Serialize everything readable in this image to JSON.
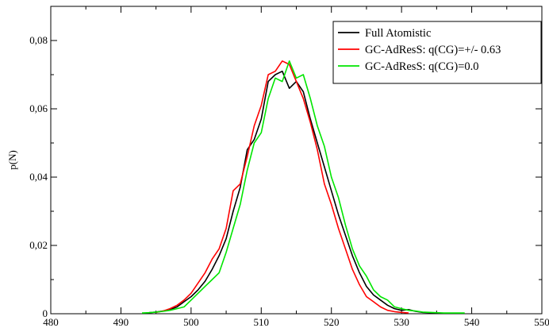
{
  "chart_data": {
    "type": "line",
    "title": "",
    "xlabel": "",
    "ylabel": "p(N)",
    "xlim": [
      480,
      550
    ],
    "ylim": [
      0,
      0.09
    ],
    "xticks": [
      480,
      490,
      500,
      510,
      520,
      530,
      540,
      550
    ],
    "xtick_labels": [
      "480",
      "490",
      "500",
      "510",
      "520",
      "530",
      "540",
      "550"
    ],
    "yticks": [
      0,
      0.02,
      0.04,
      0.06,
      0.08
    ],
    "ytick_labels": [
      "0",
      "0,02",
      "0,04",
      "0,06",
      "0,08"
    ],
    "grid": false,
    "legend_position": "top-right",
    "series": [
      {
        "name": "Full Atomistic",
        "color": "#000000",
        "x": [
          494,
          495,
          496,
          497,
          498,
          499,
          500,
          501,
          502,
          503,
          504,
          505,
          506,
          507,
          508,
          509,
          510,
          511,
          512,
          513,
          514,
          515,
          516,
          517,
          518,
          519,
          520,
          521,
          522,
          523,
          524,
          525,
          526,
          527,
          528,
          529,
          530,
          531,
          532,
          533,
          534,
          535
        ],
        "y": [
          0.0003,
          0.0005,
          0.0008,
          0.0012,
          0.002,
          0.0035,
          0.005,
          0.007,
          0.0095,
          0.013,
          0.017,
          0.022,
          0.03,
          0.037,
          0.048,
          0.051,
          0.057,
          0.068,
          0.07,
          0.071,
          0.066,
          0.068,
          0.065,
          0.057,
          0.05,
          0.043,
          0.036,
          0.029,
          0.023,
          0.017,
          0.012,
          0.008,
          0.0055,
          0.004,
          0.0025,
          0.0015,
          0.001,
          0.0012,
          0.0007,
          0.0004,
          0.0003,
          0.0002
        ]
      },
      {
        "name": "GC-AdResS: q(CG)=+/- 0.63",
        "color": "#ff0000",
        "x": [
          495,
          496,
          497,
          498,
          499,
          500,
          501,
          502,
          503,
          504,
          505,
          506,
          507,
          508,
          509,
          510,
          511,
          512,
          513,
          514,
          515,
          516,
          517,
          518,
          519,
          520,
          521,
          522,
          523,
          524,
          525,
          526,
          527,
          528,
          529,
          530,
          531
        ],
        "y": [
          0.0004,
          0.0008,
          0.0015,
          0.0025,
          0.004,
          0.006,
          0.009,
          0.012,
          0.016,
          0.019,
          0.025,
          0.036,
          0.038,
          0.046,
          0.055,
          0.061,
          0.07,
          0.071,
          0.074,
          0.073,
          0.068,
          0.063,
          0.056,
          0.048,
          0.038,
          0.032,
          0.025,
          0.019,
          0.013,
          0.0085,
          0.005,
          0.0035,
          0.002,
          0.001,
          0.0006,
          0.0004,
          0.0002
        ]
      },
      {
        "name": "GC-AdResS: q(CG)=0.0",
        "color": "#00e600",
        "x": [
          493,
          494,
          495,
          496,
          497,
          498,
          499,
          500,
          501,
          502,
          503,
          504,
          505,
          506,
          507,
          508,
          509,
          510,
          511,
          512,
          513,
          514,
          515,
          516,
          517,
          518,
          519,
          520,
          521,
          522,
          523,
          524,
          525,
          526,
          527,
          528,
          529,
          530,
          531,
          532,
          533,
          534,
          535,
          536,
          537,
          538,
          539
        ],
        "y": [
          0.0002,
          0.0003,
          0.0005,
          0.0007,
          0.001,
          0.0015,
          0.002,
          0.004,
          0.006,
          0.008,
          0.01,
          0.012,
          0.018,
          0.025,
          0.032,
          0.042,
          0.05,
          0.053,
          0.063,
          0.069,
          0.068,
          0.074,
          0.069,
          0.07,
          0.063,
          0.055,
          0.049,
          0.04,
          0.034,
          0.026,
          0.019,
          0.014,
          0.011,
          0.007,
          0.005,
          0.004,
          0.002,
          0.0015,
          0.001,
          0.0008,
          0.0005,
          0.0004,
          0.0003,
          0.0002,
          0.0002,
          0.0002,
          0.0002
        ]
      }
    ]
  }
}
